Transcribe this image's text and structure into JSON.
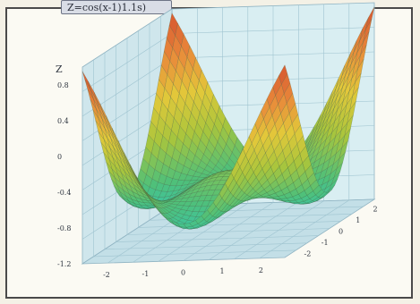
{
  "window": {
    "title_tab": "Z=cos(x-1)1.1s)"
  },
  "chart_data": {
    "type": "surface3d",
    "zlabel": "Z",
    "z_ticks": [
      "0.8",
      "0.4",
      "0",
      "-0.4",
      "-0.8",
      "-1.2"
    ],
    "x_ticks": [
      "-2",
      "-1",
      "0",
      "1",
      "2"
    ],
    "y_ticks": [
      "-2",
      "-1",
      "0",
      "1",
      "2"
    ],
    "zlim": [
      -1.2,
      1.0
    ],
    "xlim": [
      -2.6,
      2.6
    ],
    "ylim": [
      -2.6,
      2.6
    ],
    "grid": true,
    "colormap": [
      "#27c9cf",
      "#4fc07a",
      "#a9c53c",
      "#e3c83a",
      "#e9883a",
      "#d4522f"
    ]
  }
}
